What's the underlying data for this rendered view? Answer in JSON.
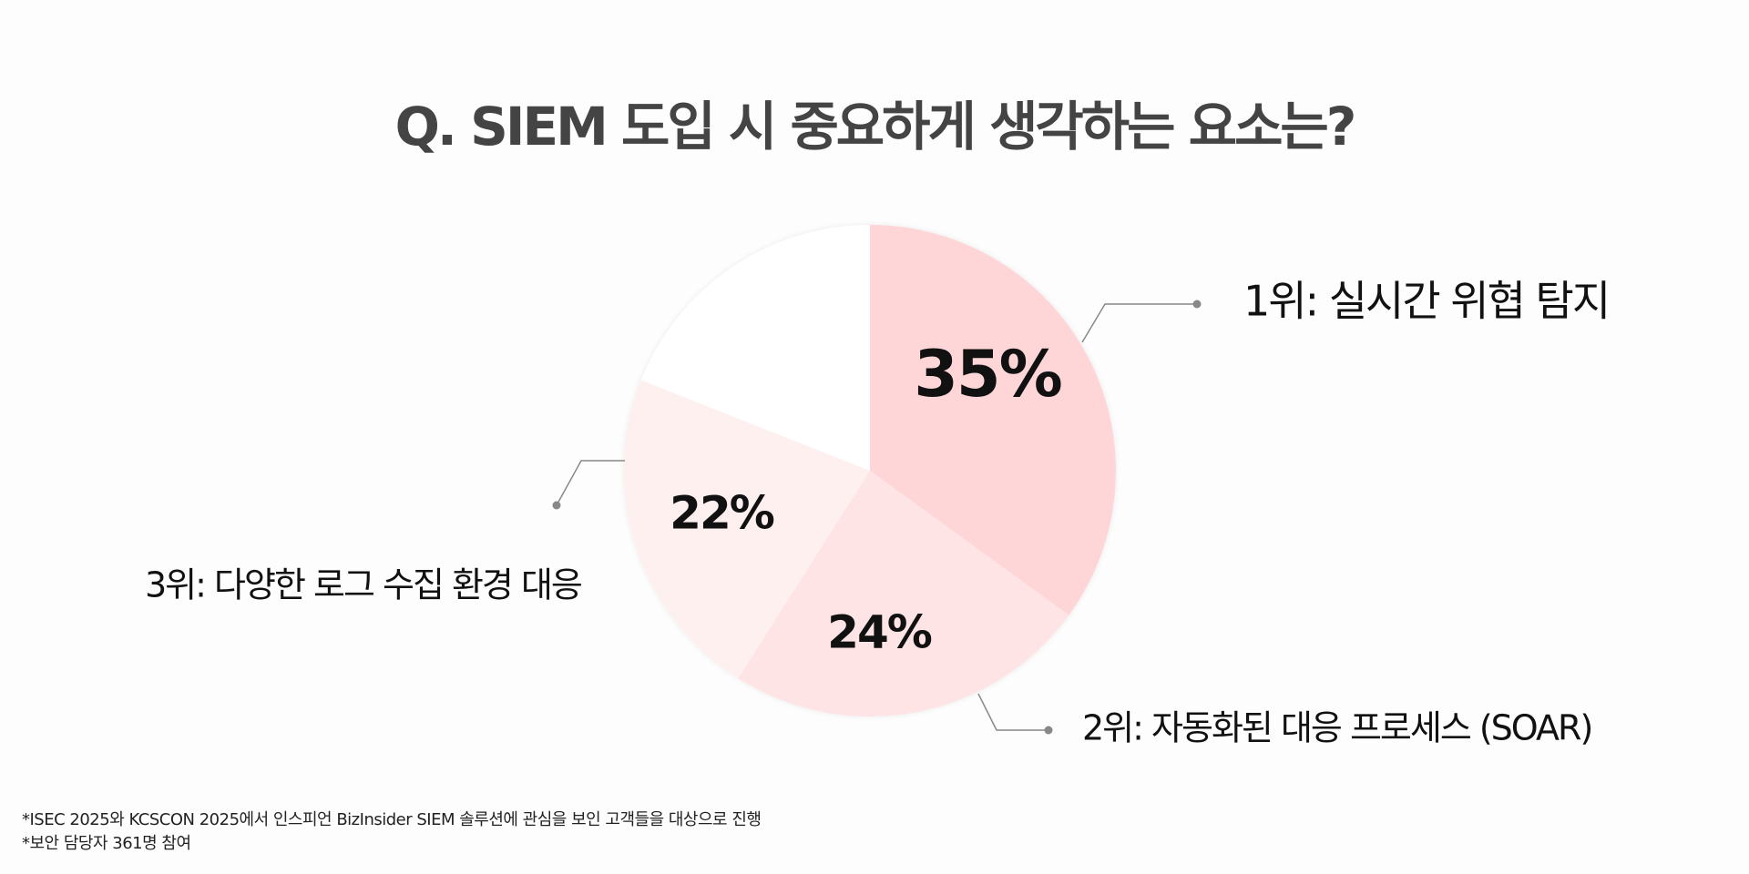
{
  "chart_data": {
    "type": "pie",
    "title": "Q. SIEM 도입 시 중요하게 생각하는 요소는?",
    "categories": [
      "1위: 실시간 위협 탐지",
      "2위: 자동화된 대응 프로세스 (SOAR)",
      "3위: 다양한 로그 수집 환경 대응",
      null
    ],
    "values": [
      35,
      24,
      22,
      19
    ],
    "value_labels": [
      "35%",
      "24%",
      "22%",
      null
    ],
    "colors": [
      "#ffd6d8",
      "#ffe4e5",
      "#fff0f0",
      "#ffffff"
    ],
    "notes": [
      "*ISEC 2025와 KCSCON 2025에서 인스피언 BizInsider SIEM 솔루션에 관심을 보인 고객들을 대상으로 진행",
      "*보안 담당자 361명 참여"
    ]
  }
}
